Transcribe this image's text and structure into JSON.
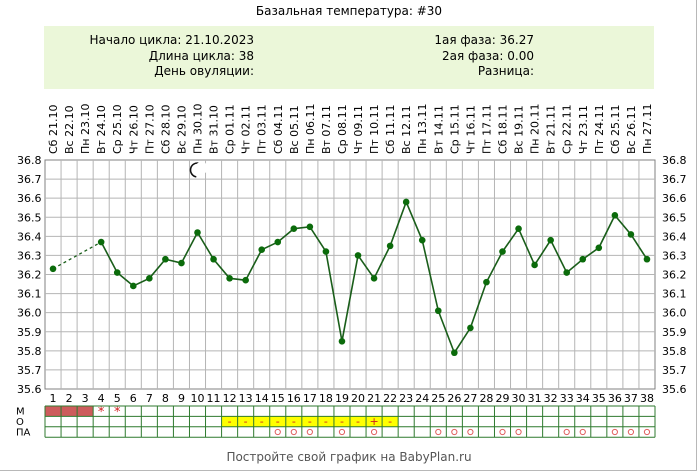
{
  "title": "Базальная температура: #30",
  "info": {
    "cycle_start_label": "Начало цикла:",
    "cycle_start": "21.10.2023",
    "cycle_length_label": "Длина цикла:",
    "cycle_length": "38",
    "ovulation_label": "День овуляции:",
    "ovulation": "",
    "phase1_label": "1ая фаза:",
    "phase1": "36.27",
    "phase2_label": "2ая фаза:",
    "phase2": "0.00",
    "difference_label": "Разница:",
    "difference": ""
  },
  "footer": "Постройте свой график на BabyPlan.ru",
  "colors": {
    "line": "#1a5e1a",
    "point": "#0b6b0b",
    "grid": "#b5b5b5",
    "menses": "#cd5c5c",
    "mucus_highlight": "#ffff00",
    "mucus_mark": "#d02020",
    "marker_circle": "#e06060"
  },
  "chart_data": {
    "type": "line",
    "ylim": [
      35.6,
      36.8
    ],
    "yticks": [
      "36.8",
      "36.7",
      "36.6",
      "36.5",
      "36.4",
      "36.3",
      "36.2",
      "36.1",
      "36.0",
      "35.9",
      "35.8",
      "35.7",
      "35.6"
    ],
    "grid": true,
    "dates": [
      "Сб 21.10",
      "Вс 22.10",
      "Пн 23.10",
      "Вт 24.10",
      "Ср 25.10",
      "Чт 26.10",
      "Пт 27.10",
      "Сб 28.10",
      "Вс 29.10",
      "Пн 30.10",
      "Вт 31.10",
      "Ср 01.11",
      "Чт 02.11",
      "Пт 03.11",
      "Сб 04.11",
      "Вс 05.11",
      "Пн 06.11",
      "Вт 07.11",
      "Ср 08.11",
      "Чт 09.11",
      "Пт 10.11",
      "Сб 11.11",
      "Вс 12.11",
      "Пн 13.11",
      "Вт 14.11",
      "Ср 15.11",
      "Чт 16.11",
      "Пт 17.11",
      "Сб 18.11",
      "Вс 19.11",
      "Пн 20.11",
      "Вт 21.11",
      "Ср 22.11",
      "Чт 23.11",
      "Пт 24.11",
      "Сб 25.11",
      "Вс 26.11",
      "Пн 27.11"
    ],
    "days": [
      "1",
      "2",
      "3",
      "4",
      "5",
      "6",
      "7",
      "8",
      "9",
      "10",
      "11",
      "12",
      "13",
      "14",
      "15",
      "16",
      "17",
      "18",
      "19",
      "20",
      "21",
      "22",
      "23",
      "24",
      "25",
      "26",
      "27",
      "28",
      "29",
      "30",
      "31",
      "32",
      "33",
      "34",
      "35",
      "36",
      "37",
      "38"
    ],
    "series": [
      {
        "values": [
          36.23,
          null,
          null,
          36.37,
          36.21,
          36.14,
          36.18,
          36.28,
          36.26,
          36.42,
          36.28,
          36.18,
          36.17,
          36.33,
          36.37,
          36.44,
          36.45,
          36.32,
          35.85,
          36.3,
          36.18,
          36.35,
          36.58,
          36.38,
          36.01,
          35.79,
          35.92,
          36.16,
          36.32,
          36.44,
          36.25,
          36.38,
          36.21,
          36.28,
          36.34,
          36.51,
          36.41,
          36.28
        ]
      }
    ],
    "dashed_segments": [
      [
        1,
        4
      ]
    ],
    "moon_day": 10,
    "marker_rows": {
      "labels": [
        "М",
        "О",
        "ПА"
      ],
      "menses_days": [
        1,
        2,
        3
      ],
      "menses_star_days": [
        4,
        5
      ],
      "menses_star_symbol": "*",
      "mucus_days": [
        12,
        13,
        14,
        15,
        16,
        17,
        18,
        19,
        20,
        21,
        22
      ],
      "mucus_symbols": [
        "-",
        "-",
        "-",
        "-",
        "-",
        "-",
        "-",
        "-",
        "-",
        "+",
        "-"
      ],
      "intercourse_days": [
        15,
        16,
        17,
        19,
        21,
        25,
        26,
        27,
        29,
        30,
        33,
        34,
        36,
        37,
        38
      ],
      "intercourse_symbol": "o"
    }
  }
}
